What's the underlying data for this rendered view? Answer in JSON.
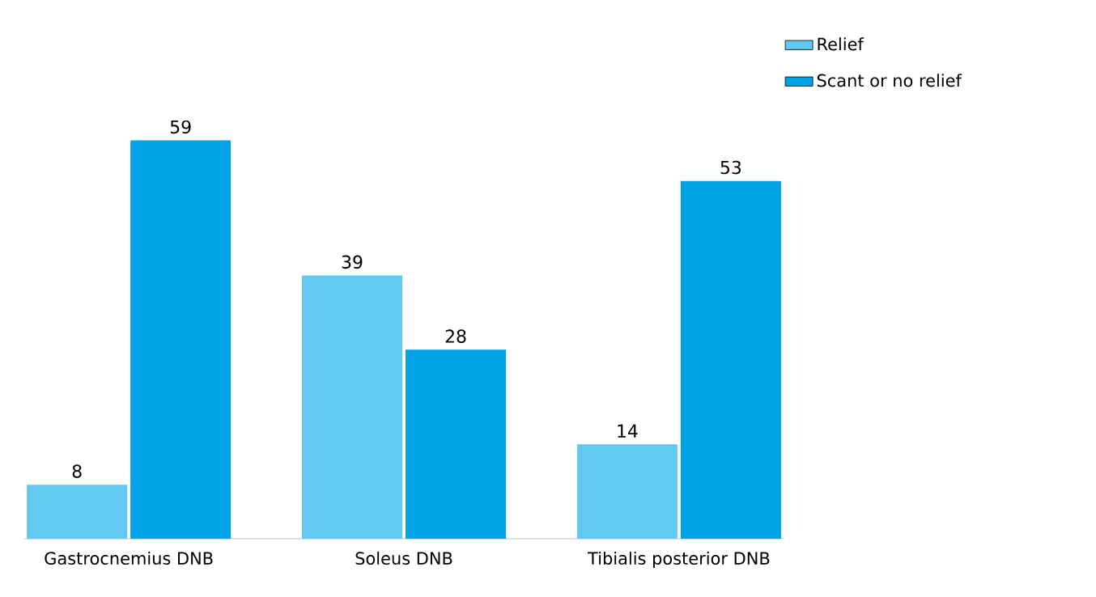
{
  "chart_data": {
    "type": "bar",
    "categories": [
      "Gastrocnemius DNB",
      "Soleus DNB",
      "Tibialis posterior DNB"
    ],
    "series": [
      {
        "name": "Relief",
        "color": "#62c9f0",
        "values": [
          8,
          39,
          14
        ]
      },
      {
        "name": "Scant or no relief",
        "color": "#00a3e6",
        "values": [
          59,
          28,
          53
        ]
      }
    ],
    "data_labels": true,
    "legend": "top right",
    "tick_labels": "x"
  }
}
